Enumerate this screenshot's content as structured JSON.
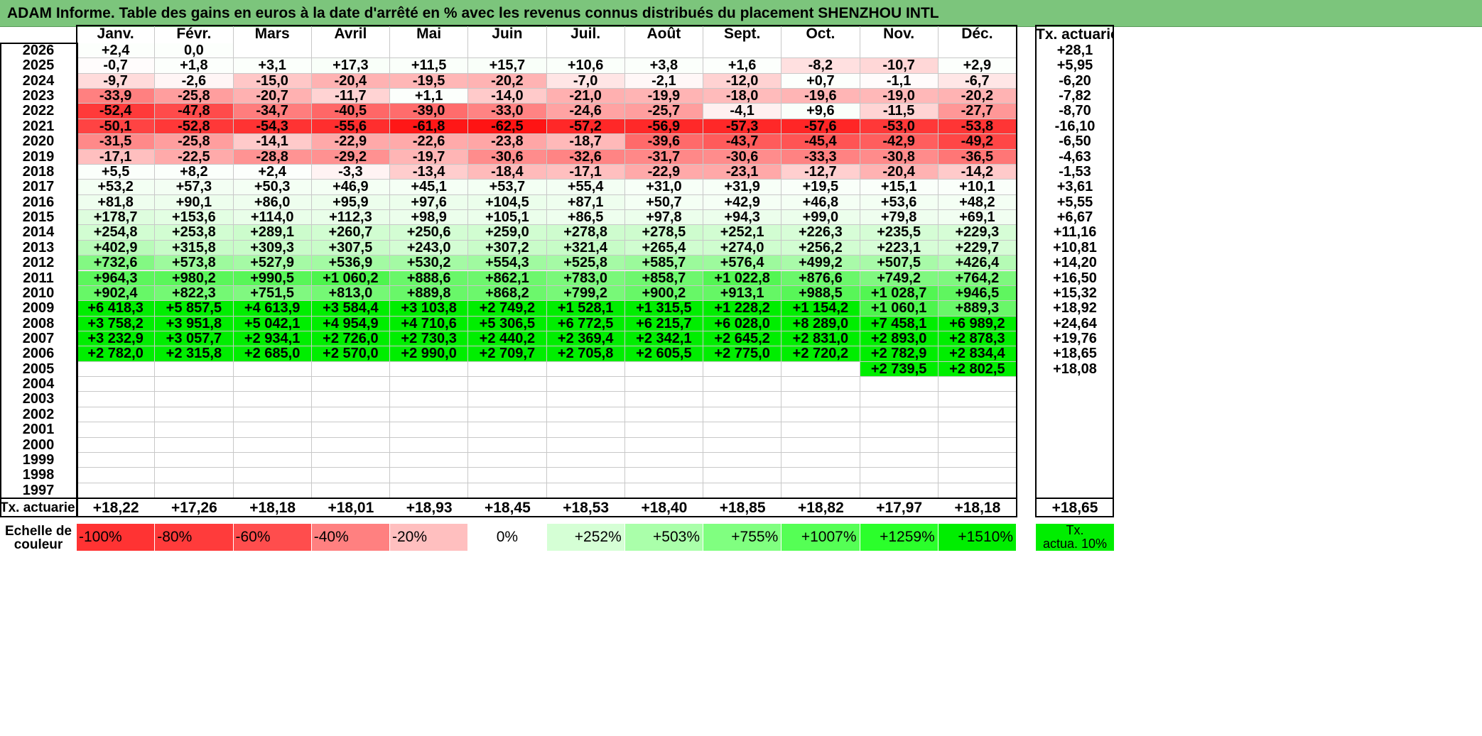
{
  "title": "ADAM Informe. Table des gains en euros à la date d'arrêté en % avec les revenus connus distribués du placement SHENZHOU INTL",
  "chart_data": {
    "type": "heatmap",
    "months": [
      "Janv.",
      "Févr.",
      "Mars",
      "Avril",
      "Mai",
      "Juin",
      "Juil.",
      "Août",
      "Sept.",
      "Oct.",
      "Nov.",
      "Déc."
    ],
    "tx_header": "Tx. actuariel",
    "years": [
      "2026",
      "2025",
      "2024",
      "2023",
      "2022",
      "2021",
      "2020",
      "2019",
      "2018",
      "2017",
      "2016",
      "2015",
      "2014",
      "2013",
      "2012",
      "2011",
      "2010",
      "2009",
      "2008",
      "2007",
      "2006",
      "2005",
      "2004",
      "2003",
      "2002",
      "2001",
      "2000",
      "1999",
      "1998",
      "1997"
    ],
    "values": [
      [
        "+2,4",
        "0,0",
        "",
        "",
        "",
        "",
        "",
        "",
        "",
        "",
        "",
        ""
      ],
      [
        "-0,7",
        "+1,8",
        "+3,1",
        "+17,3",
        "+11,5",
        "+15,7",
        "+10,6",
        "+3,8",
        "+1,6",
        "-8,2",
        "-10,7",
        "+2,9"
      ],
      [
        "-9,7",
        "-2,6",
        "-15,0",
        "-20,4",
        "-19,5",
        "-20,2",
        "-7,0",
        "-2,1",
        "-12,0",
        "+0,7",
        "-1,1",
        "-6,7"
      ],
      [
        "-33,9",
        "-25,8",
        "-20,7",
        "-11,7",
        "+1,1",
        "-14,0",
        "-21,0",
        "-19,9",
        "-18,0",
        "-19,6",
        "-19,0",
        "-20,2"
      ],
      [
        "-52,4",
        "-47,8",
        "-34,7",
        "-40,5",
        "-39,0",
        "-33,0",
        "-24,6",
        "-25,7",
        "-4,1",
        "+9,6",
        "-11,5",
        "-27,7"
      ],
      [
        "-50,1",
        "-52,8",
        "-54,3",
        "-55,6",
        "-61,8",
        "-62,5",
        "-57,2",
        "-56,9",
        "-57,3",
        "-57,6",
        "-53,0",
        "-53,8"
      ],
      [
        "-31,5",
        "-25,8",
        "-14,1",
        "-22,9",
        "-22,6",
        "-23,8",
        "-18,7",
        "-39,6",
        "-43,7",
        "-45,4",
        "-42,9",
        "-49,2"
      ],
      [
        "-17,1",
        "-22,5",
        "-28,8",
        "-29,2",
        "-19,7",
        "-30,6",
        "-32,6",
        "-31,7",
        "-30,6",
        "-33,3",
        "-30,8",
        "-36,5"
      ],
      [
        "+5,5",
        "+8,2",
        "+2,4",
        "-3,3",
        "-13,4",
        "-18,4",
        "-17,1",
        "-22,9",
        "-23,1",
        "-12,7",
        "-20,4",
        "-14,2"
      ],
      [
        "+53,2",
        "+57,3",
        "+50,3",
        "+46,9",
        "+45,1",
        "+53,7",
        "+55,4",
        "+31,0",
        "+31,9",
        "+19,5",
        "+15,1",
        "+10,1"
      ],
      [
        "+81,8",
        "+90,1",
        "+86,0",
        "+95,9",
        "+97,6",
        "+104,5",
        "+87,1",
        "+50,7",
        "+42,9",
        "+46,8",
        "+53,6",
        "+48,2"
      ],
      [
        "+178,7",
        "+153,6",
        "+114,0",
        "+112,3",
        "+98,9",
        "+105,1",
        "+86,5",
        "+97,8",
        "+94,3",
        "+99,0",
        "+79,8",
        "+69,1"
      ],
      [
        "+254,8",
        "+253,8",
        "+289,1",
        "+260,7",
        "+250,6",
        "+259,0",
        "+278,8",
        "+278,5",
        "+252,1",
        "+226,3",
        "+235,5",
        "+229,3"
      ],
      [
        "+402,9",
        "+315,8",
        "+309,3",
        "+307,5",
        "+243,0",
        "+307,2",
        "+321,4",
        "+265,4",
        "+274,0",
        "+256,2",
        "+223,1",
        "+229,7"
      ],
      [
        "+732,6",
        "+573,8",
        "+527,9",
        "+536,9",
        "+530,2",
        "+554,3",
        "+525,8",
        "+585,7",
        "+576,4",
        "+499,2",
        "+507,5",
        "+426,4"
      ],
      [
        "+964,3",
        "+980,2",
        "+990,5",
        "+1 060,2",
        "+888,6",
        "+862,1",
        "+783,0",
        "+858,7",
        "+1 022,8",
        "+876,6",
        "+749,2",
        "+764,2"
      ],
      [
        "+902,4",
        "+822,3",
        "+751,5",
        "+813,0",
        "+889,8",
        "+868,2",
        "+799,2",
        "+900,2",
        "+913,1",
        "+988,5",
        "+1 028,7",
        "+946,5"
      ],
      [
        "+6 418,3",
        "+5 857,5",
        "+4 613,9",
        "+3 584,4",
        "+3 103,8",
        "+2 749,2",
        "+1 528,1",
        "+1 315,5",
        "+1 228,2",
        "+1 154,2",
        "+1 060,1",
        "+889,3"
      ],
      [
        "+3 758,2",
        "+3 951,8",
        "+5 042,1",
        "+4 954,9",
        "+4 710,6",
        "+5 306,5",
        "+6 772,5",
        "+6 215,7",
        "+6 028,0",
        "+8 289,0",
        "+7 458,1",
        "+6 989,2"
      ],
      [
        "+3 232,9",
        "+3 057,7",
        "+2 934,1",
        "+2 726,0",
        "+2 730,3",
        "+2 440,2",
        "+2 369,4",
        "+2 342,1",
        "+2 645,2",
        "+2 831,0",
        "+2 893,0",
        "+2 878,3"
      ],
      [
        "+2 782,0",
        "+2 315,8",
        "+2 685,0",
        "+2 570,0",
        "+2 990,0",
        "+2 709,7",
        "+2 705,8",
        "+2 605,5",
        "+2 775,0",
        "+2 720,2",
        "+2 782,9",
        "+2 834,4"
      ],
      [
        "",
        "",
        "",
        "",
        "",
        "",
        "",
        "",
        "",
        "",
        "+2 739,5",
        "+2 802,5"
      ],
      [
        "",
        "",
        "",
        "",
        "",
        "",
        "",
        "",
        "",
        "",
        "",
        ""
      ],
      [
        "",
        "",
        "",
        "",
        "",
        "",
        "",
        "",
        "",
        "",
        "",
        ""
      ],
      [
        "",
        "",
        "",
        "",
        "",
        "",
        "",
        "",
        "",
        "",
        "",
        ""
      ],
      [
        "",
        "",
        "",
        "",
        "",
        "",
        "",
        "",
        "",
        "",
        "",
        ""
      ],
      [
        "",
        "",
        "",
        "",
        "",
        "",
        "",
        "",
        "",
        "",
        "",
        ""
      ],
      [
        "",
        "",
        "",
        "",
        "",
        "",
        "",
        "",
        "",
        "",
        "",
        ""
      ],
      [
        "",
        "",
        "",
        "",
        "",
        "",
        "",
        "",
        "",
        "",
        "",
        ""
      ],
      [
        "",
        "",
        "",
        "",
        "",
        "",
        "",
        "",
        "",
        "",
        "",
        ""
      ]
    ],
    "tx_actuariel": [
      "+28,1",
      "+5,95",
      "-6,20",
      "-7,82",
      "-8,70",
      "-16,10",
      "-6,50",
      "-4,63",
      "-1,53",
      "+3,61",
      "+5,55",
      "+6,67",
      "+11,16",
      "+10,81",
      "+14,20",
      "+16,50",
      "+15,32",
      "+18,92",
      "+24,64",
      "+19,76",
      "+18,65",
      "+18,08",
      "",
      "",
      "",
      "",
      "",
      "",
      "",
      ""
    ],
    "footer": {
      "label": "Tx. actuariel",
      "values": [
        "+18,22",
        "+17,26",
        "+18,18",
        "+18,01",
        "+18,93",
        "+18,45",
        "+18,53",
        "+18,40",
        "+18,85",
        "+18,82",
        "+17,97",
        "+18,18"
      ],
      "total": "+18,65"
    },
    "scale": {
      "label_line1": "Echelle de",
      "label_line2": "couleur",
      "steps": [
        {
          "label": "-100%",
          "color": "#ff3333"
        },
        {
          "label": "-80%",
          "color": "#ff3b3b"
        },
        {
          "label": "-60%",
          "color": "#ff4d4d"
        },
        {
          "label": "-40%",
          "color": "#ff8080"
        },
        {
          "label": "-20%",
          "color": "#ffbfbf"
        },
        {
          "label": "0%",
          "color": "#ffffff"
        },
        {
          "label": "+252%",
          "color": "#d5ffd5"
        },
        {
          "label": "+503%",
          "color": "#aaffaa"
        },
        {
          "label": "+755%",
          "color": "#80ff80"
        },
        {
          "label": "+1007%",
          "color": "#55ff55"
        },
        {
          "label": "+1259%",
          "color": "#2bff2b"
        },
        {
          "label": "+1510%",
          "color": "#00ee00"
        }
      ],
      "tx_line1": "Tx.",
      "tx_line2": "actua. 10%",
      "tx_color": "#00ee00"
    }
  }
}
